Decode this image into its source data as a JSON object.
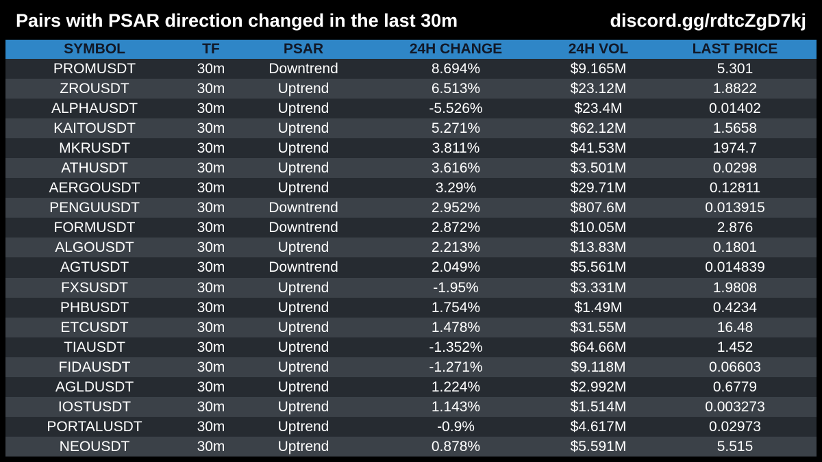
{
  "header": {
    "title": "Pairs with PSAR direction changed in the last 30m",
    "link": "discord.gg/rdtcZgD7kj"
  },
  "table": {
    "columns": [
      "SYMBOL",
      "TF",
      "PSAR",
      "24H CHANGE",
      "24H VOL",
      "LAST PRICE"
    ],
    "rows": [
      [
        "PROMUSDT",
        "30m",
        "Downtrend",
        "8.694%",
        "$9.165M",
        "5.301"
      ],
      [
        "ZROUSDT",
        "30m",
        "Uptrend",
        "6.513%",
        "$23.12M",
        "1.8822"
      ],
      [
        "ALPHAUSDT",
        "30m",
        "Uptrend",
        "-5.526%",
        "$23.4M",
        "0.01402"
      ],
      [
        "KAITOUSDT",
        "30m",
        "Uptrend",
        "5.271%",
        "$62.12M",
        "1.5658"
      ],
      [
        "MKRUSDT",
        "30m",
        "Uptrend",
        "3.811%",
        "$41.53M",
        "1974.7"
      ],
      [
        "ATHUSDT",
        "30m",
        "Uptrend",
        "3.616%",
        "$3.501M",
        "0.0298"
      ],
      [
        "AERGOUSDT",
        "30m",
        "Uptrend",
        "3.29%",
        "$29.71M",
        "0.12811"
      ],
      [
        "PENGUUSDT",
        "30m",
        "Downtrend",
        "2.952%",
        "$807.6M",
        "0.013915"
      ],
      [
        "FORMUSDT",
        "30m",
        "Downtrend",
        "2.872%",
        "$10.05M",
        "2.876"
      ],
      [
        "ALGOUSDT",
        "30m",
        "Uptrend",
        "2.213%",
        "$13.83M",
        "0.1801"
      ],
      [
        "AGTUSDT",
        "30m",
        "Downtrend",
        "2.049%",
        "$5.561M",
        "0.014839"
      ],
      [
        "FXSUSDT",
        "30m",
        "Uptrend",
        "-1.95%",
        "$3.331M",
        "1.9808"
      ],
      [
        "PHBUSDT",
        "30m",
        "Uptrend",
        "1.754%",
        "$1.49M",
        "0.4234"
      ],
      [
        "ETCUSDT",
        "30m",
        "Uptrend",
        "1.478%",
        "$31.55M",
        "16.48"
      ],
      [
        "TIAUSDT",
        "30m",
        "Uptrend",
        "-1.352%",
        "$64.66M",
        "1.452"
      ],
      [
        "FIDAUSDT",
        "30m",
        "Uptrend",
        "-1.271%",
        "$9.118M",
        "0.06603"
      ],
      [
        "AGLDUSDT",
        "30m",
        "Uptrend",
        "1.224%",
        "$2.992M",
        "0.6779"
      ],
      [
        "IOSTUSDT",
        "30m",
        "Uptrend",
        "1.143%",
        "$1.514M",
        "0.003273"
      ],
      [
        "PORTALUSDT",
        "30m",
        "Uptrend",
        "-0.9%",
        "$4.617M",
        "0.02973"
      ],
      [
        "NEOUSDT",
        "30m",
        "Uptrend",
        "0.878%",
        "$5.591M",
        "5.515"
      ]
    ]
  },
  "colors": {
    "background": "#000000",
    "header_row": "#2f86c7",
    "row_dark": "#262b31",
    "row_light": "#3b4148",
    "text": "#ffffff"
  }
}
